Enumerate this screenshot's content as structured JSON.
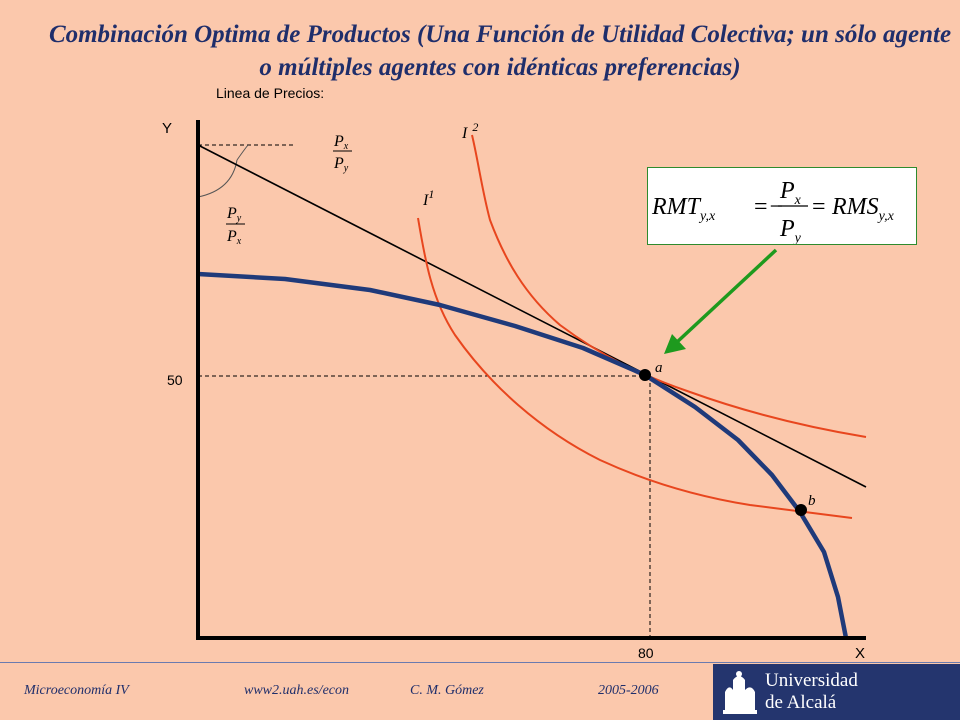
{
  "title": "Combinación Optima de Productos (Una Función de Utilidad Colectiva; un sólo agente o múltiples agentes con idénticas preferencias)",
  "price_line_label": "Linea de Precios:",
  "axes": {
    "y_label": "Y",
    "x_label": "X",
    "y_tick": "50",
    "x_tick": "80"
  },
  "curve_labels": {
    "i1_base": "I",
    "i1_sup": "1",
    "i2_base": "I",
    "i2_sup": "2"
  },
  "points": {
    "a": "a",
    "b": "b"
  },
  "slope_fractions": {
    "top": {
      "num": "P",
      "num_sub": "x",
      "den": "P",
      "den_sub": "y"
    },
    "bottom": {
      "num": "P",
      "num_sub": "y",
      "den": "P",
      "den_sub": "x"
    }
  },
  "formula": {
    "lhs": "RMT",
    "lhs_sub": "y,x",
    "eq1": "=",
    "minus": "−",
    "num": "P",
    "num_sub": "x",
    "den": "P",
    "den_sub": "y",
    "eq2": "=",
    "rhs": "RMS",
    "rhs_sub": "y,x"
  },
  "footer": {
    "course": "Microeconomía IV",
    "url": "www2.uah.es/econ",
    "author": "C. M. Gómez",
    "years": "2005-2006",
    "university_line1": "Universidad",
    "university_line2": "de Alcalá"
  },
  "colors": {
    "background": "#FBC8AC",
    "frontier": "#1F3A7A",
    "indifference": "#E8461E",
    "arrow": "#1E9A1E",
    "title": "#1F2E6B"
  }
}
